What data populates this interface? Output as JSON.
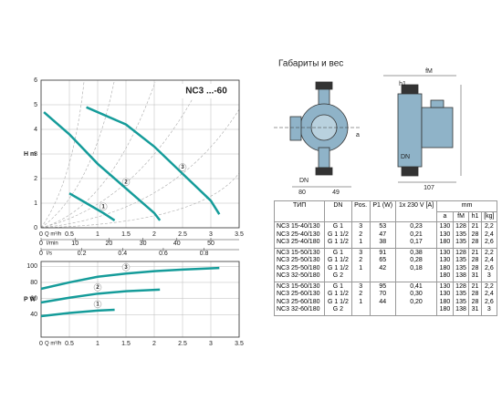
{
  "heading": "Габариты и вес",
  "chart_data": [
    {
      "type": "line",
      "title": "NC3 ...-60",
      "x_label": "Q m³/h",
      "y_label": "H m",
      "xlim": [
        0,
        3.5
      ],
      "xticks": [
        0,
        0.5,
        1,
        1.5,
        2,
        2.5,
        3,
        3.5
      ],
      "ylim": [
        0,
        6
      ],
      "yticks": [
        0,
        1,
        2,
        3,
        4,
        5,
        6
      ],
      "grid": true,
      "secondary_x_axes": [
        {
          "label": "l/min",
          "xlim": [
            0,
            58.33
          ],
          "xticks": [
            0,
            10,
            20,
            30,
            40,
            50
          ]
        },
        {
          "label": "l/s",
          "xlim": [
            0,
            0.972
          ],
          "xticks": [
            0,
            0.2,
            0.4,
            0.6,
            0.8
          ]
        }
      ],
      "series": [
        {
          "name": "1",
          "color": "#159c9a",
          "x": [
            0.5,
            0.8,
            1.1,
            1.3
          ],
          "values": [
            1.4,
            1.0,
            0.6,
            0.3
          ]
        },
        {
          "name": "2",
          "color": "#159c9a",
          "x": [
            0.05,
            0.5,
            1,
            1.5,
            2,
            2.1
          ],
          "values": [
            4.7,
            3.8,
            2.6,
            1.6,
            0.6,
            0.3
          ]
        },
        {
          "name": "3",
          "color": "#159c9a",
          "x": [
            0.8,
            1.5,
            2,
            2.5,
            3,
            3.15
          ],
          "values": [
            4.9,
            4.2,
            3.3,
            2.2,
            1.1,
            0.55
          ]
        }
      ]
    },
    {
      "type": "line",
      "x_label": "Q m³/h",
      "y_label": "P W",
      "xlim": [
        0,
        3.5
      ],
      "xticks": [
        0,
        0.5,
        1,
        1.5,
        2,
        2.5,
        3,
        3.5
      ],
      "ylim": [
        12,
        106
      ],
      "yticks": [
        40,
        60,
        80,
        100
      ],
      "grid": true,
      "series": [
        {
          "name": "1",
          "color": "#159c9a",
          "x": [
            0,
            0.5,
            1,
            1.3
          ],
          "values": [
            38,
            42,
            45,
            46
          ]
        },
        {
          "name": "2",
          "color": "#159c9a",
          "x": [
            0,
            0.5,
            1,
            1.5,
            2.1
          ],
          "values": [
            55,
            61,
            66,
            69,
            71
          ]
        },
        {
          "name": "3",
          "color": "#159c9a",
          "x": [
            0,
            0.5,
            1,
            1.5,
            2,
            2.5,
            3.15
          ],
          "values": [
            72,
            80,
            87,
            91,
            94,
            96,
            98
          ]
        }
      ]
    }
  ],
  "drawing": {
    "dimensions": [
      "DN",
      "80",
      "49",
      "fM",
      "h1",
      "a",
      "DN",
      "107"
    ]
  },
  "table": {
    "header": [
      "ТИП",
      "DN",
      "Pos.",
      "P1 (W)",
      "1x 230 V [A]"
    ],
    "mm": "mm",
    "subheader": [
      "a",
      "fM",
      "h1",
      "[kg]"
    ],
    "groups": [
      {
        "type": [
          "NC3 15-40/130",
          "NC3 25-40/130",
          "NC3 25-40/180"
        ],
        "dn": [
          "G 1",
          "G 1 1/2",
          "G 1 1/2"
        ],
        "pos": [
          "3",
          "2",
          "1"
        ],
        "p1": [
          "53",
          "47",
          "38"
        ],
        "amp": [
          "0,23",
          "0,21",
          "0,17"
        ],
        "a": [
          "130",
          "130",
          "180"
        ],
        "fm": [
          "128",
          "135",
          "135"
        ],
        "h1": [
          "21",
          "28",
          "28"
        ],
        "kg": [
          "2,2",
          "2,4",
          "2,6"
        ]
      },
      {
        "type": [
          "NC3 15-50/130",
          "NC3 25-50/130",
          "NC3 25-50/180",
          "NC3 32-50/180"
        ],
        "dn": [
          "G 1",
          "G 1 1/2",
          "G 1 1/2",
          "G 2"
        ],
        "pos": [
          "3",
          "2",
          "1"
        ],
        "p1": [
          "91",
          "65",
          "42"
        ],
        "amp": [
          "0,38",
          "0,28",
          "0,18"
        ],
        "a": [
          "130",
          "130",
          "180",
          "180"
        ],
        "fm": [
          "128",
          "135",
          "135",
          "138"
        ],
        "h1": [
          "21",
          "28",
          "28",
          "31"
        ],
        "kg": [
          "2,2",
          "2,4",
          "2,6",
          "3"
        ]
      },
      {
        "type": [
          "NC3 15-60/130",
          "NC3 25-60/130",
          "NC3 25-60/180",
          "NC3 32-60/180"
        ],
        "dn": [
          "G 1",
          "G 1 1/2",
          "G 1 1/2",
          "G 2"
        ],
        "pos": [
          "3",
          "2",
          "1"
        ],
        "p1": [
          "95",
          "70",
          "44"
        ],
        "amp": [
          "0,41",
          "0,30",
          "0,20"
        ],
        "a": [
          "130",
          "130",
          "180",
          "180"
        ],
        "fm": [
          "128",
          "135",
          "135",
          "138"
        ],
        "h1": [
          "21",
          "28",
          "28",
          "31"
        ],
        "kg": [
          "2,2",
          "2,4",
          "2,6",
          "3"
        ]
      }
    ]
  }
}
